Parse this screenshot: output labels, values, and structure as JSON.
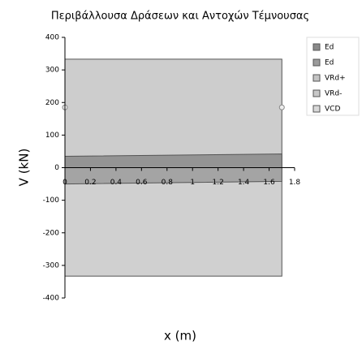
{
  "chart_data": {
    "type": "area",
    "title": "Περιβάλλουσα Δράσεων και Αντοχών Τέμνουσας",
    "x_label": "x (m)",
    "y_label": "V (kN)",
    "x": [
      0,
      1.7
    ],
    "series": [
      {
        "name": "Ed",
        "color": "#8a8a8a",
        "values": [
          35,
          42
        ]
      },
      {
        "name": "Ed",
        "color": "#9c9c9c",
        "values": [
          -50,
          -42
        ]
      },
      {
        "name": "VRd+",
        "color": "#c4c4c4",
        "values": [
          333,
          333
        ]
      },
      {
        "name": "VRd-",
        "color": "#c8c8c8",
        "values": [
          -333,
          -333
        ]
      },
      {
        "name": "VCD",
        "color": "#d8d8d8",
        "values": [
          185,
          185
        ]
      }
    ],
    "xlim": [
      0,
      1.8
    ],
    "xticks": [
      0,
      0.2,
      0.4,
      0.6,
      0.8,
      1,
      1.2,
      1.4,
      1.6,
      1.8
    ],
    "ylim": [
      -400,
      400
    ],
    "yticks": [
      -400,
      -300,
      -200,
      -100,
      0,
      100,
      200,
      300,
      400
    ],
    "grid": false,
    "legend": "right"
  }
}
